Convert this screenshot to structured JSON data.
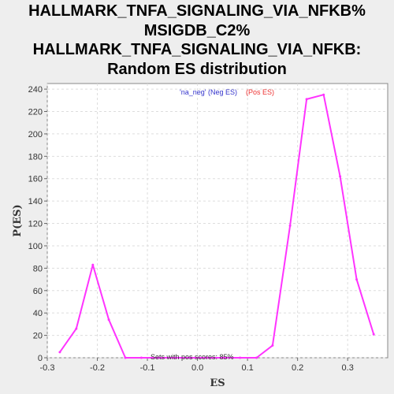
{
  "title_lines": [
    "HALLMARK_TNFA_SIGNALING_VIA_NFKB%",
    "MSIGDB_C2%",
    "HALLMARK_TNFA_SIGNALING_VIA_NFKB:",
    "Random ES distribution"
  ],
  "legend": {
    "part1": "'na_neg' (Neg ES)",
    "part2": "(Pos ES)"
  },
  "annotation": "Sets with pos scores: 85%",
  "colors": {
    "series": "#ff33ff",
    "legend_neg": "#3333cc",
    "legend_pos": "#ee3333",
    "background": "#eeeeee",
    "plot_bg": "#ffffff"
  },
  "chart_data": {
    "type": "line",
    "xlabel": "ES",
    "ylabel": "P(ES)",
    "xlim": [
      -0.3,
      0.38
    ],
    "ylim": [
      0,
      245
    ],
    "xticks": [
      "-0.3",
      "-0.2",
      "-0.1",
      "0.0",
      "0.1",
      "0.2",
      "0.3"
    ],
    "xtick_values": [
      -0.3,
      -0.2,
      -0.1,
      0.0,
      0.1,
      0.2,
      0.3
    ],
    "yticks": [
      "0",
      "20",
      "40",
      "60",
      "80",
      "100",
      "120",
      "140",
      "160",
      "180",
      "200",
      "220",
      "240"
    ],
    "ytick_values": [
      0,
      20,
      40,
      60,
      80,
      100,
      120,
      140,
      160,
      180,
      200,
      220,
      240
    ],
    "grid": true,
    "series": [
      {
        "x": [
          -0.275,
          -0.242,
          -0.209,
          -0.177,
          -0.144,
          -0.112,
          -0.079,
          -0.046,
          -0.014,
          0.019,
          0.052,
          0.085,
          0.118,
          0.15,
          0.185,
          0.218,
          0.252,
          0.285,
          0.318,
          0.352
        ],
        "y": [
          5,
          26,
          83,
          34,
          0,
          0,
          0,
          0,
          0,
          0,
          0,
          0,
          0,
          11,
          118,
          231,
          235,
          162,
          70,
          21
        ]
      }
    ]
  }
}
